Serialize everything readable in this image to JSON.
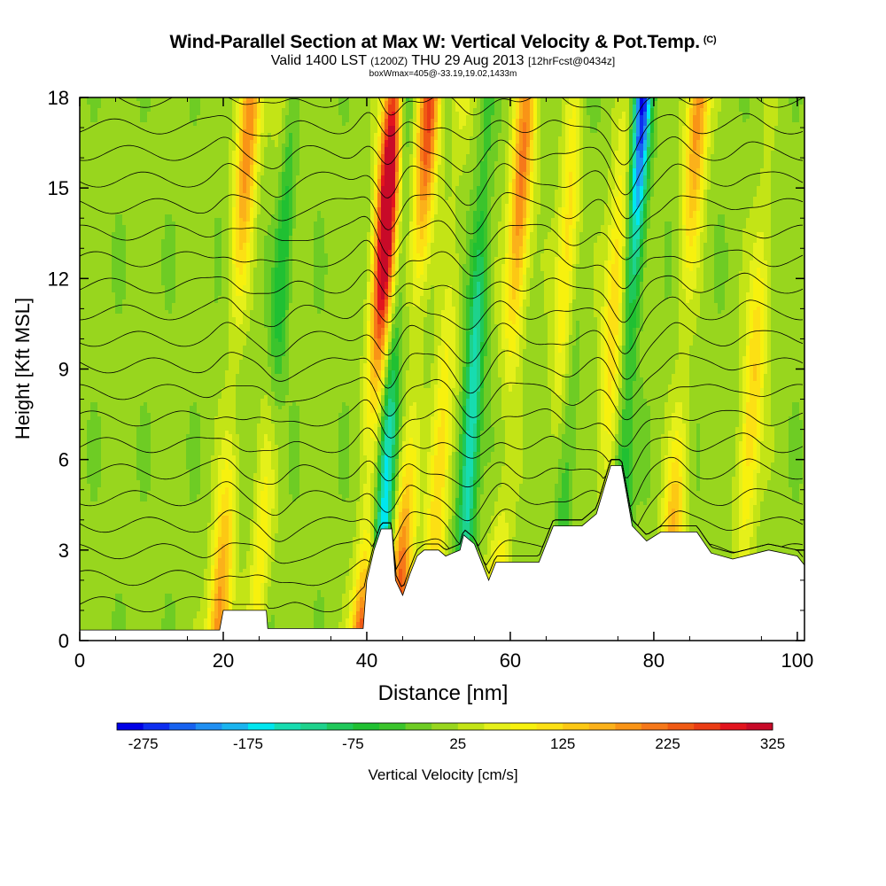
{
  "header": {
    "title": "Wind-Parallel Section at Max W: Vertical Velocity & Pot.Temp.",
    "copyright": "(C)",
    "valid_prefix": "Valid 1400 LST",
    "valid_utc": "(1200Z)",
    "valid_date": "THU 29 Aug 2013",
    "forecast": "[12hrFcst@0434z]",
    "boxmax": "boxWmax=405@-33.19,19.02,1433m"
  },
  "chart_data": {
    "type": "heatmap",
    "xlabel": "Distance [nm]",
    "ylabel": "Height [Kft MSL]",
    "xlim": [
      0,
      101
    ],
    "ylim": [
      0,
      18
    ],
    "x_ticks": [
      0,
      20,
      40,
      60,
      80,
      100
    ],
    "y_ticks": [
      0,
      3,
      6,
      9,
      12,
      15,
      18
    ],
    "colorbar": {
      "label": "Vertical Velocity [cm/s]",
      "tick_labels": [
        -275,
        -175,
        -75,
        25,
        125,
        225,
        325
      ],
      "levels_min": -300,
      "levels_step": 25,
      "colors": [
        "#0000e6",
        "#0d2ef0",
        "#1762f0",
        "#1f8ff2",
        "#1ab4ef",
        "#00e6ef",
        "#17dcb0",
        "#1ed28c",
        "#1fc85a",
        "#20c032",
        "#3bc42c",
        "#6ecc24",
        "#98d61e",
        "#c3e416",
        "#e5f01a",
        "#f7f10e",
        "#fce014",
        "#fcc814",
        "#fbb11a",
        "#f99416",
        "#f6781a",
        "#f05a14",
        "#ea3c14",
        "#e2141e",
        "#c80a28"
      ],
      "background": "#2cbd2c"
    },
    "updrafts": [
      {
        "x": 20.5,
        "peak": 200
      },
      {
        "x": 26,
        "peak": 100
      },
      {
        "x": 40.5,
        "peak": 390
      },
      {
        "x": 45.5,
        "peak": 250
      },
      {
        "x": 50,
        "peak": 120
      },
      {
        "x": 59,
        "peak": 200
      },
      {
        "x": 66,
        "peak": 110
      },
      {
        "x": 73,
        "peak": 120
      },
      {
        "x": 83,
        "peak": 200
      },
      {
        "x": 93,
        "peak": 120
      }
    ],
    "downdrafts": [
      {
        "x": 27,
        "peak": -110
      },
      {
        "x": 43,
        "peak": -190
      },
      {
        "x": 54.5,
        "peak": -170
      },
      {
        "x": 76,
        "peak": -290
      },
      {
        "x": 68,
        "peak": -60
      }
    ],
    "terrain_kft": [
      [
        0,
        0.35
      ],
      [
        19.5,
        0.35
      ],
      [
        20,
        1.0
      ],
      [
        26,
        1.0
      ],
      [
        26.2,
        0.4
      ],
      [
        39.5,
        0.4
      ],
      [
        40,
        2.0
      ],
      [
        41,
        3.0
      ],
      [
        42,
        3.7
      ],
      [
        43.5,
        3.7
      ],
      [
        44,
        2.0
      ],
      [
        45,
        1.5
      ],
      [
        46,
        2.2
      ],
      [
        47,
        2.8
      ],
      [
        48,
        3.0
      ],
      [
        50,
        3.0
      ],
      [
        51,
        2.8
      ],
      [
        53,
        3.0
      ],
      [
        53.5,
        3.5
      ],
      [
        55,
        3.2
      ],
      [
        57,
        2.0
      ],
      [
        58,
        2.6
      ],
      [
        64,
        2.6
      ],
      [
        66,
        3.8
      ],
      [
        70,
        3.8
      ],
      [
        72,
        4.2
      ],
      [
        74,
        5.8
      ],
      [
        75.5,
        5.8
      ],
      [
        77,
        3.8
      ],
      [
        79,
        3.3
      ],
      [
        81,
        3.6
      ],
      [
        86,
        3.6
      ],
      [
        88,
        2.9
      ],
      [
        91,
        2.7
      ],
      [
        96,
        3.0
      ],
      [
        100,
        2.8
      ],
      [
        101,
        2.5
      ]
    ],
    "theta_contours": 20
  },
  "axes": {
    "x_tick_labels": [
      "0",
      "20",
      "40",
      "60",
      "80",
      "100"
    ],
    "y_tick_labels": [
      "0",
      "3",
      "6",
      "9",
      "12",
      "15",
      "18"
    ]
  }
}
